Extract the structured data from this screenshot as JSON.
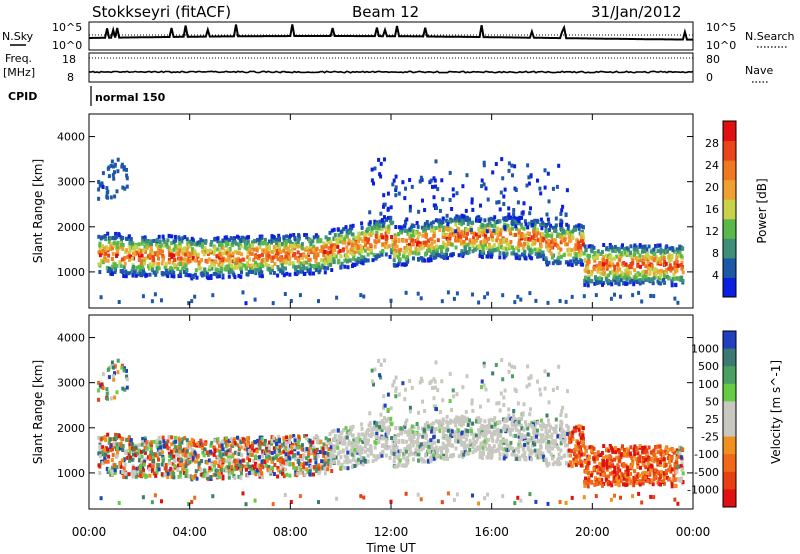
{
  "header": {
    "station": "Stokkseyri (fitACF)",
    "beam": "Beam 12",
    "date": "31/Jan/2012"
  },
  "top_panels": {
    "nsky_label": "N.Sky",
    "nsky_ticks": [
      "10^5",
      "10^0"
    ],
    "nsky_right_ticks": [
      "10^5",
      "10^0"
    ],
    "nsearch_label": "N.Search",
    "freq_label_1": "Freq.",
    "freq_label_2": "[MHz]",
    "freq_ticks": [
      "18",
      "8"
    ],
    "nave_ticks": [
      "80",
      "0"
    ],
    "nave_label": "Nave",
    "cpid_label": "CPID",
    "cpid_value": "normal 150"
  },
  "colors": {
    "power_scale": [
      "#0a1fe0",
      "#1f57a8",
      "#3d8f7a",
      "#59b84a",
      "#c8d24a",
      "#f0a030",
      "#f07820",
      "#ea4418",
      "#e01010"
    ],
    "velocity_scale": [
      "#2040c0",
      "#3a7a70",
      "#4aa060",
      "#66cc44",
      "#c8c8c0",
      "#c8c8c0",
      "#f09020",
      "#f06818",
      "#e84010",
      "#e01010"
    ]
  },
  "chart_data": [
    {
      "type": "heatmap",
      "panel": "power",
      "xlabel": "",
      "ylabel": "Slant Range [km]",
      "x_ticks": [
        "00:00",
        "04:00",
        "08:00",
        "12:00",
        "16:00",
        "20:00",
        "00:00"
      ],
      "y_ticks": [
        "1000",
        "2000",
        "3000",
        "4000"
      ],
      "ylim": [
        200,
        4500
      ],
      "colorbar_label": "Power [dB]",
      "colorbar_ticks": [
        "4",
        "8",
        "12",
        "16",
        "20",
        "24",
        "28"
      ],
      "colorbar_range": [
        0,
        32
      ]
    },
    {
      "type": "heatmap",
      "panel": "velocity",
      "xlabel": "Time UT",
      "ylabel": "Slant Range [km]",
      "x_ticks": [
        "00:00",
        "04:00",
        "08:00",
        "12:00",
        "16:00",
        "20:00",
        "00:00"
      ],
      "y_ticks": [
        "1000",
        "2000",
        "3000",
        "4000"
      ],
      "ylim": [
        200,
        4500
      ],
      "colorbar_label": "Velocity [m s^-1]",
      "colorbar_ticks": [
        "1000",
        "500",
        "100",
        "50",
        "25",
        "-25",
        "-100",
        "-500",
        "-1000"
      ]
    }
  ]
}
